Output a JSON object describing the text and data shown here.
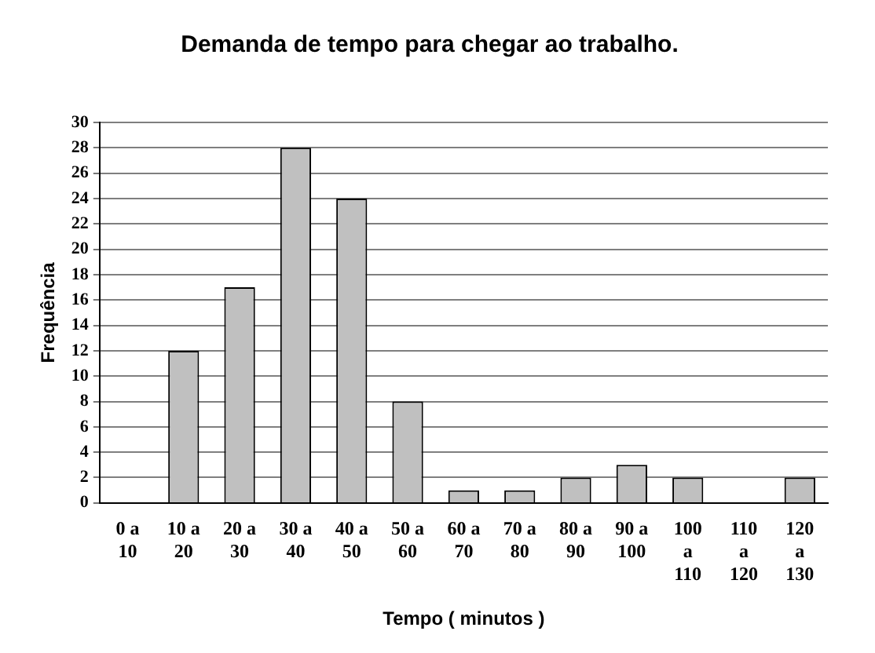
{
  "chart_data": {
    "type": "bar",
    "title": "Demanda de tempo para chegar ao trabalho.",
    "xlabel": "Tempo ( minutos )",
    "ylabel": "Frequência",
    "categories": [
      "0 a 10",
      "10 a 20",
      "20 a 30",
      "30 a 40",
      "40 a 50",
      "50 a 60",
      "60 a 70",
      "70 a 80",
      "80 a 90",
      "90 a 100",
      "100 a 110",
      "110 a 120",
      "120 a 130"
    ],
    "values": [
      0,
      12,
      17,
      28,
      24,
      8,
      1,
      1,
      2,
      3,
      2,
      0,
      2
    ],
    "color": "#c0c0c0",
    "ylim": [
      0,
      30
    ],
    "yticks": [
      0,
      2,
      4,
      6,
      8,
      10,
      12,
      14,
      16,
      18,
      20,
      22,
      24,
      26,
      28,
      30
    ],
    "grid": "y",
    "legend": false
  }
}
